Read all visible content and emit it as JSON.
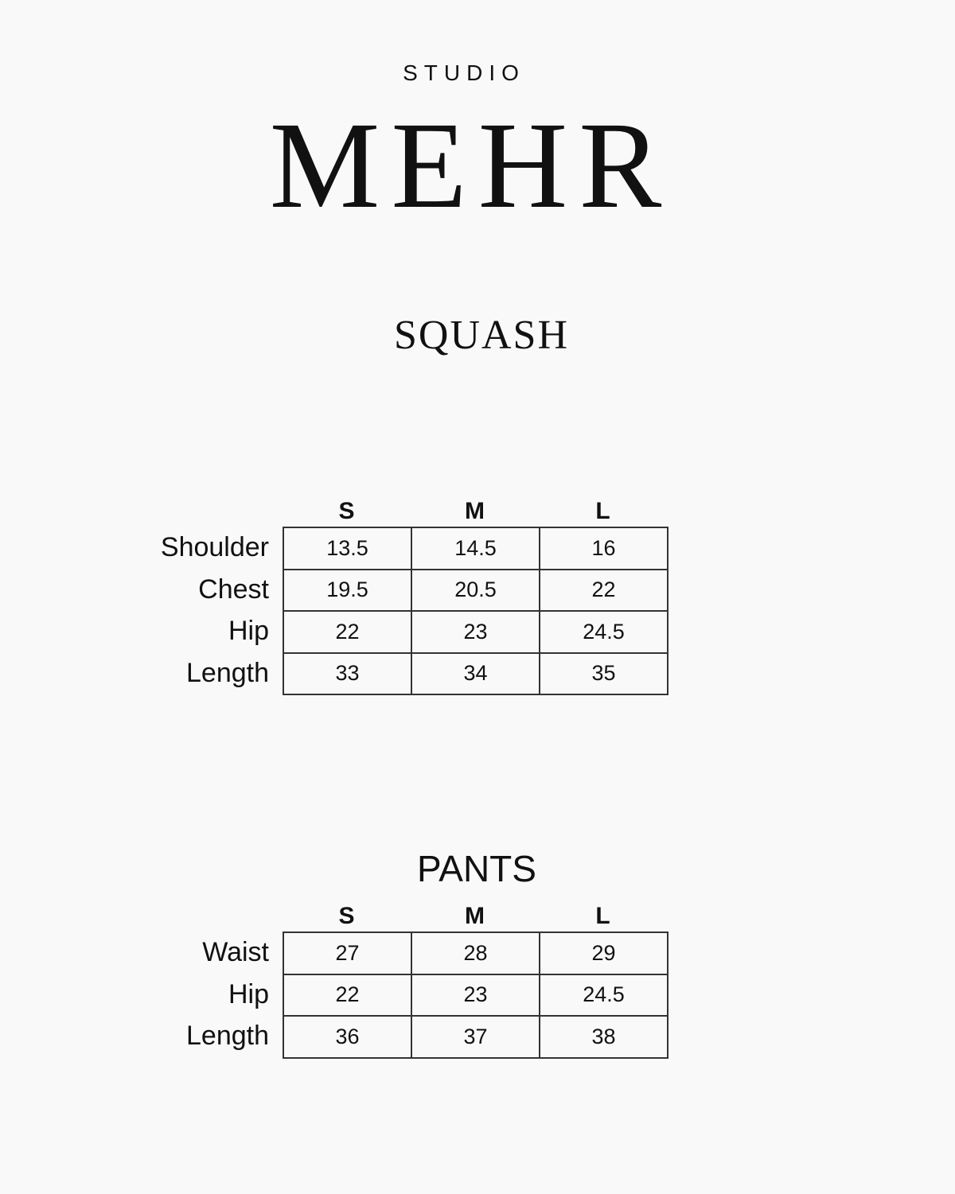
{
  "header": {
    "studio": "STUDIO",
    "brand": "MEHR"
  },
  "product": "SQUASH",
  "tables": [
    {
      "columns": [
        "S",
        "M",
        "L"
      ],
      "rows": [
        {
          "label": "Shoulder",
          "values": [
            13.5,
            14.5,
            16
          ]
        },
        {
          "label": "Chest",
          "values": [
            19.5,
            20.5,
            22
          ]
        },
        {
          "label": "Hip",
          "values": [
            22,
            23,
            24.5
          ]
        },
        {
          "label": "Length",
          "values": [
            33,
            34,
            35
          ]
        }
      ]
    },
    {
      "title": "PANTS",
      "columns": [
        "S",
        "M",
        "L"
      ],
      "rows": [
        {
          "label": "Waist",
          "values": [
            27,
            28,
            29
          ]
        },
        {
          "label": "Hip",
          "values": [
            22,
            23,
            24.5
          ]
        },
        {
          "label": "Length",
          "values": [
            36,
            37,
            38
          ]
        }
      ]
    }
  ]
}
